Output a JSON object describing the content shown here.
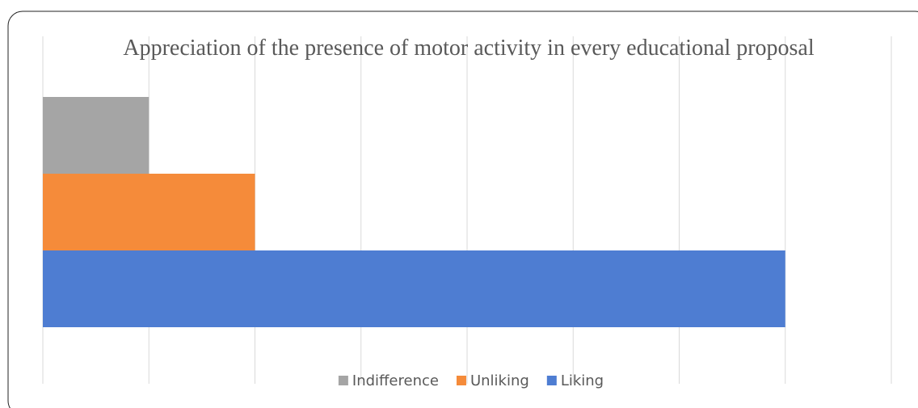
{
  "chart_data": {
    "type": "bar",
    "orientation": "horizontal",
    "title": "Appreciation of the presence of motor activity in every educational proposal",
    "series": [
      {
        "name": "Indifference",
        "color": "#a5a5a5",
        "values": [
          1
        ]
      },
      {
        "name": "Unliking",
        "color": "#f58b3a",
        "values": [
          2
        ]
      },
      {
        "name": "Liking",
        "color": "#4e7dd2",
        "values": [
          7
        ]
      }
    ],
    "xlim": [
      0,
      8
    ],
    "xticks": [
      0,
      1,
      2,
      3,
      4,
      5,
      6,
      7,
      8
    ],
    "grid": true,
    "legend": "bottom"
  }
}
